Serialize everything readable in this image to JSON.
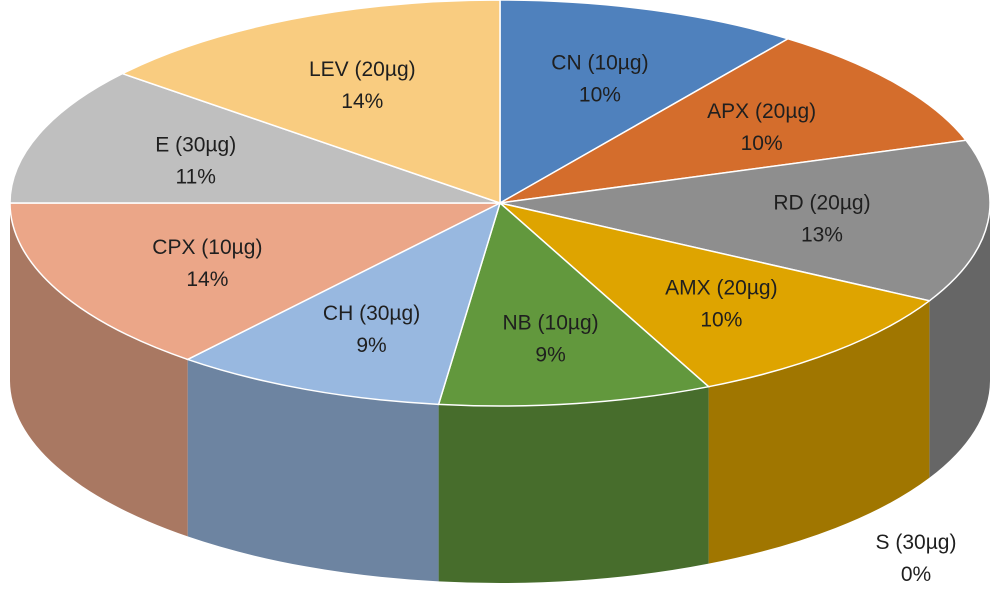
{
  "chart_data": {
    "type": "pie",
    "style": "3d-pie",
    "title": "",
    "slices": [
      {
        "name": "CN (10µg)",
        "percent_label": "10%",
        "value": 10,
        "color": "#4f81bd"
      },
      {
        "name": "APX (20µg)",
        "percent_label": "10%",
        "value": 10,
        "color": "#d46d2c"
      },
      {
        "name": "RD (20µg)",
        "percent_label": "13%",
        "value": 13,
        "color": "#8e8e8e"
      },
      {
        "name": "AMX (20µg)",
        "percent_label": "10%",
        "value": 10,
        "color": "#dea400"
      },
      {
        "name": "S (30µg)",
        "percent_label": "0%",
        "value": 0,
        "color": "#5b9bd5"
      },
      {
        "name": "NB (10µg)",
        "percent_label": "9%",
        "value": 9,
        "color": "#62983d"
      },
      {
        "name": "CH (30µg)",
        "percent_label": "9%",
        "value": 9,
        "color": "#98b8e0"
      },
      {
        "name": "CPX (10µg)",
        "percent_label": "14%",
        "value": 14,
        "color": "#eba688"
      },
      {
        "name": "E (30µg)",
        "percent_label": "11%",
        "value": 11,
        "color": "#bfbfbf"
      },
      {
        "name": "LEV (20µg)",
        "percent_label": "14%",
        "value": 14,
        "color": "#f9cc80"
      }
    ]
  }
}
